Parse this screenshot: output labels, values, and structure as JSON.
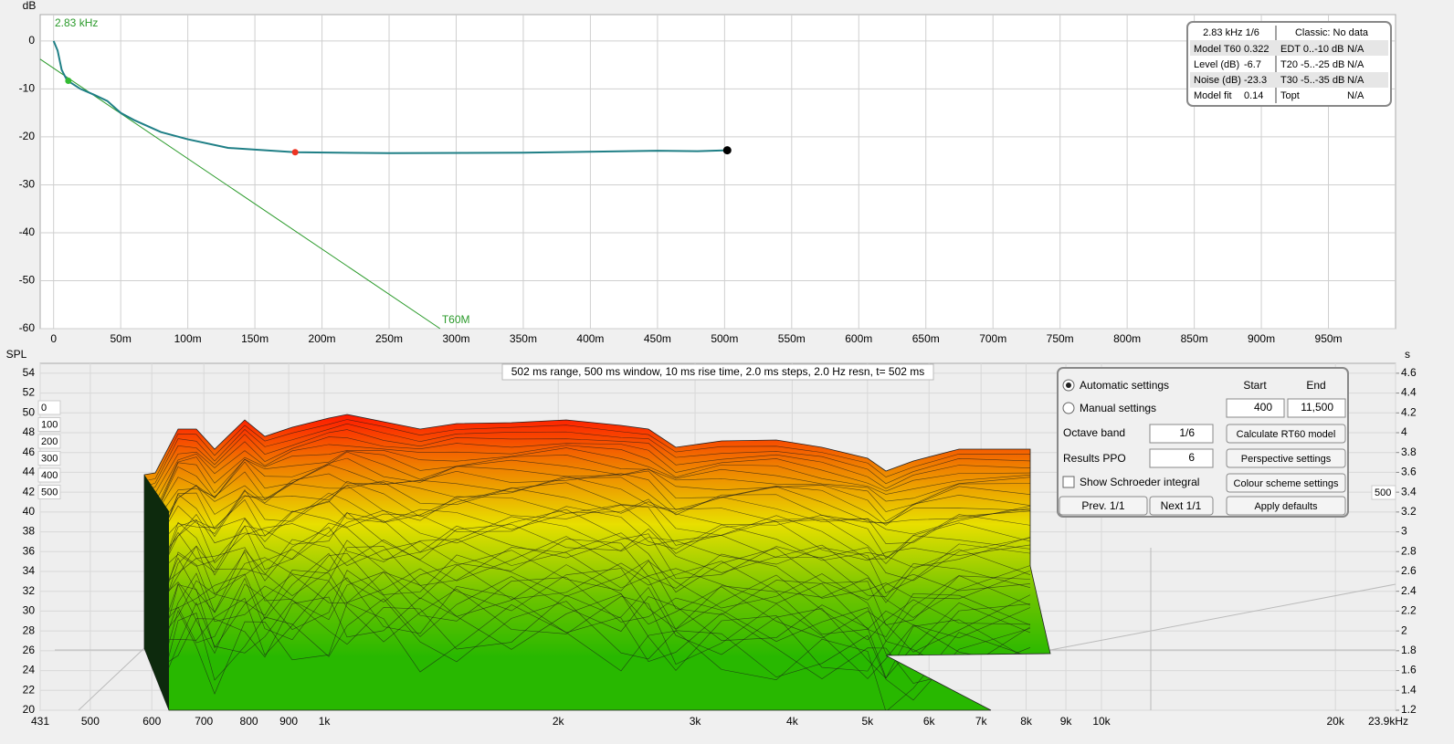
{
  "decay_chart": {
    "y_label": "dB",
    "annotation": "2.83 kHz",
    "fit_label": "T60M",
    "xlim": [
      -10,
      1000
    ],
    "ylim": [
      -60,
      5.5
    ],
    "yticks": [
      0,
      -10,
      -20,
      -30,
      -40,
      -50,
      -60
    ],
    "xticks": [
      0,
      {
        "value": 50,
        "label": "50m"
      },
      {
        "value": 100,
        "label": "100m"
      },
      {
        "value": 150,
        "label": "150m"
      },
      {
        "value": 200,
        "label": "200m"
      },
      {
        "value": 250,
        "label": "250m"
      },
      {
        "value": 300,
        "label": "300m"
      },
      {
        "value": 350,
        "label": "350m"
      },
      {
        "value": 400,
        "label": "400m"
      },
      {
        "value": 450,
        "label": "450m"
      },
      {
        "value": 500,
        "label": "500m"
      },
      {
        "value": 550,
        "label": "550m"
      },
      {
        "value": 600,
        "label": "600m"
      },
      {
        "value": 650,
        "label": "650m"
      },
      {
        "value": 700,
        "label": "700m"
      },
      {
        "value": 750,
        "label": "750m"
      },
      {
        "value": 800,
        "label": "800m"
      },
      {
        "value": 850,
        "label": "850m"
      },
      {
        "value": 900,
        "label": "900m"
      },
      {
        "value": 950,
        "label": "950m"
      }
    ],
    "curve": {
      "color": "#1f7f86",
      "x": [
        0,
        3,
        6,
        10,
        20,
        30,
        40,
        50,
        60,
        80,
        100,
        130,
        180,
        250,
        350,
        450,
        480,
        502
      ],
      "y": [
        0,
        -2,
        -6,
        -8.2,
        -10,
        -11.2,
        -12.5,
        -15,
        -16.5,
        -19,
        -20.5,
        -22.3,
        -23.2,
        -23.4,
        -23.3,
        -22.9,
        -23,
        -22.8
      ]
    },
    "fit_line": {
      "color": "#2a9a2a",
      "x": [
        -10,
        288
      ],
      "y": [
        -3.8,
        -60
      ]
    },
    "markers": [
      {
        "x": 11,
        "y": -8.3,
        "color": "#33bb33"
      },
      {
        "x": 180,
        "y": -23.2,
        "color": "#ee3322"
      },
      {
        "x": 502,
        "y": -22.8,
        "color": "#000000"
      }
    ]
  },
  "info_table": {
    "header": [
      "2.83 kHz 1/6",
      "Classic: No data"
    ],
    "rows": [
      [
        "Model T60",
        "0.322",
        "EDT  0..-10 dB",
        "N/A"
      ],
      [
        "Level (dB)",
        "-6.7",
        "T20 -5..-25 dB",
        "N/A"
      ],
      [
        "Noise (dB)",
        "-23.3",
        "T30 -5..-35 dB",
        "N/A"
      ],
      [
        "Model fit",
        "0.14",
        "Topt",
        "N/A"
      ]
    ]
  },
  "waterfall": {
    "y_label": "SPL",
    "y2_label": "s",
    "info": "502 ms range, 500 ms window, 10 ms rise time, 2.0 ms steps,  2.0 Hz resn, t= 502 ms",
    "ylim": [
      20,
      55
    ],
    "yticks": [
      54,
      52,
      50,
      48,
      46,
      44,
      42,
      40,
      38,
      36,
      34,
      32,
      30,
      28,
      26,
      24,
      22,
      20
    ],
    "y2lim": [
      1.2,
      4.7
    ],
    "y2ticks": [
      4.6,
      4.4,
      4.2,
      4.0,
      3.8,
      3.6,
      3.4,
      3.2,
      3.0,
      2.8,
      2.6,
      2.4,
      2.2,
      2.0,
      1.8,
      1.6,
      1.4,
      1.2
    ],
    "xlim": [
      431,
      23900
    ],
    "log_x": true,
    "xticks": [
      431,
      500,
      600,
      700,
      800,
      900,
      {
        "value": 1000,
        "label": "1k"
      },
      {
        "value": 2000,
        "label": "2k"
      },
      {
        "value": 3000,
        "label": "3k"
      },
      {
        "value": 4000,
        "label": "4k"
      },
      {
        "value": 5000,
        "label": "5k"
      },
      {
        "value": 6000,
        "label": "6k"
      },
      {
        "value": 7000,
        "label": "7k"
      },
      {
        "value": 8000,
        "label": "8k"
      },
      {
        "value": 9000,
        "label": "9k"
      },
      {
        "value": 10000,
        "label": "10k"
      },
      {
        "value": 20000,
        "label": "20k"
      },
      {
        "value": 23900,
        "label": "23.9kHz"
      }
    ],
    "depth_ticks": [
      0,
      100,
      200,
      300,
      400,
      500
    ]
  },
  "controls": {
    "automatic": "Automatic settings",
    "manual": "Manual settings",
    "start_label": "Start",
    "end_label": "End",
    "start": "400",
    "end": "11,500",
    "octave_label": "Octave band",
    "octave": "1/6",
    "ppo_label": "Results PPO",
    "ppo": "6",
    "schroeder": "Show Schroeder integral",
    "buttons": [
      "Calculate RT60 model",
      "Perspective settings",
      "Colour scheme settings",
      "Apply defaults"
    ],
    "prev": "Prev. 1/1",
    "next": "Next 1/1"
  }
}
